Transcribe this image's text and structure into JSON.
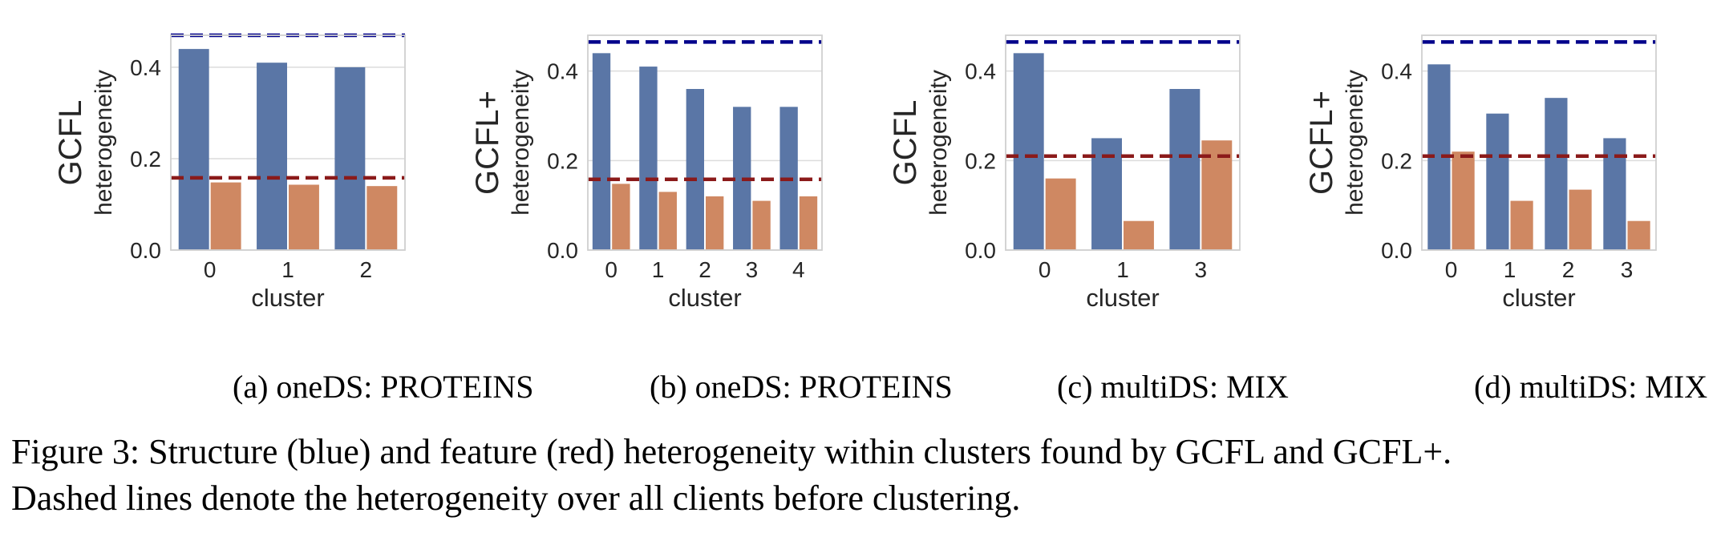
{
  "colors": {
    "structure_bar": "#5a76a6",
    "feature_bar": "#cf8862",
    "structure_dashed": "#00008b",
    "feature_dashed": "#8b1a1a"
  },
  "chart_data": [
    {
      "type": "bar",
      "subcaption": "(a) oneDS: PROTEINS",
      "ylabel_main": "GCFL",
      "ylabel_sub": "heterogeneity",
      "xlabel": "cluster",
      "categories": [
        "0",
        "1",
        "2"
      ],
      "yticks": [
        "0.0",
        "0.2",
        "0.4"
      ],
      "ylim": [
        0,
        0.47
      ],
      "series": [
        {
          "values": [
            0.44,
            0.41,
            0.4
          ]
        },
        {
          "values": [
            0.148,
            0.143,
            0.14
          ]
        }
      ],
      "hlines": [
        0.47,
        0.158
      ],
      "grid": true
    },
    {
      "type": "bar",
      "subcaption": "(b) oneDS: PROTEINS",
      "ylabel_main": "GCFL+",
      "ylabel_sub": "heterogeneity",
      "xlabel": "cluster",
      "categories": [
        "0",
        "1",
        "2",
        "3",
        "4"
      ],
      "yticks": [
        "0.0",
        "0.2",
        "0.4"
      ],
      "ylim": [
        0,
        0.48
      ],
      "series": [
        {
          "values": [
            0.44,
            0.41,
            0.36,
            0.32,
            0.32
          ]
        },
        {
          "values": [
            0.148,
            0.13,
            0.12,
            0.11,
            0.12
          ]
        }
      ],
      "hlines": [
        0.465,
        0.158
      ],
      "grid": true
    },
    {
      "type": "bar",
      "subcaption": "(c) multiDS: MIX",
      "ylabel_main": "GCFL",
      "ylabel_sub": "heterogeneity",
      "xlabel": "cluster",
      "categories": [
        "0",
        "1",
        "3"
      ],
      "yticks": [
        "0.0",
        "0.2",
        "0.4"
      ],
      "ylim": [
        0,
        0.48
      ],
      "series": [
        {
          "values": [
            0.44,
            0.25,
            0.36
          ]
        },
        {
          "values": [
            0.16,
            0.065,
            0.245
          ]
        }
      ],
      "hlines": [
        0.465,
        0.21
      ],
      "grid": true
    },
    {
      "type": "bar",
      "subcaption": "(d) multiDS: MIX",
      "ylabel_main": "GCFL+",
      "ylabel_sub": "heterogeneity",
      "xlabel": "cluster",
      "categories": [
        "0",
        "1",
        "2",
        "3"
      ],
      "yticks": [
        "0.0",
        "0.2",
        "0.4"
      ],
      "ylim": [
        0,
        0.48
      ],
      "series": [
        {
          "values": [
            0.415,
            0.305,
            0.34,
            0.25
          ]
        },
        {
          "values": [
            0.22,
            0.11,
            0.135,
            0.065
          ]
        }
      ],
      "hlines": [
        0.465,
        0.21
      ],
      "grid": true
    }
  ],
  "caption": {
    "line1": "Figure 3: Structure (blue) and feature (red) heterogeneity within clusters found by GCFL and GCFL+.",
    "line2": "Dashed lines denote the heterogeneity over all clients before clustering."
  }
}
